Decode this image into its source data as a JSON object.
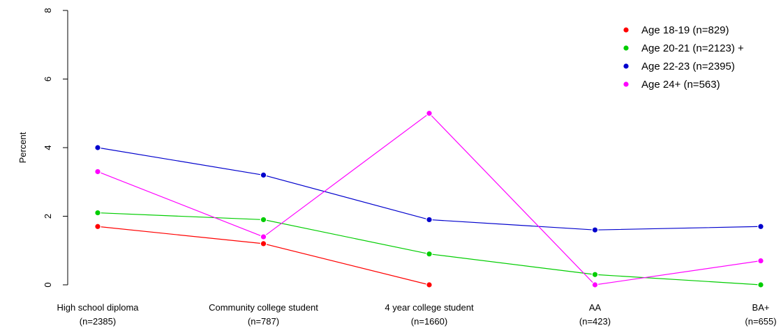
{
  "chart_data": {
    "type": "line",
    "ylabel": "Percent",
    "ylim": [
      0,
      8
    ],
    "yticks": [
      "0",
      "2",
      "4",
      "6",
      "8"
    ],
    "categories": [
      {
        "name": "High school diploma",
        "n": "(n=2385)"
      },
      {
        "name": "Community college student",
        "n": "(n=787)"
      },
      {
        "name": "4 year college student",
        "n": "(n=1660)"
      },
      {
        "name": "AA",
        "n": "(n=423)"
      },
      {
        "name": "BA+",
        "n": "(n=655)"
      }
    ],
    "series": [
      {
        "name": "Age 18-19 (n=829)",
        "color": "#ff0000",
        "values": [
          1.7,
          1.2,
          0.0,
          null,
          null
        ]
      },
      {
        "name": "Age 20-21 (n=2123) +",
        "color": "#00cd00",
        "values": [
          2.1,
          1.9,
          0.9,
          0.3,
          0.0
        ]
      },
      {
        "name": "Age 22-23 (n=2395)",
        "color": "#0000cd",
        "values": [
          4.0,
          3.2,
          1.9,
          1.6,
          1.7
        ]
      },
      {
        "name": "Age 24+ (n=563)",
        "color": "#ff00ff",
        "values": [
          3.3,
          1.4,
          5.0,
          0.0,
          0.7
        ]
      }
    ],
    "legend_position": "top-right",
    "grid": false
  }
}
